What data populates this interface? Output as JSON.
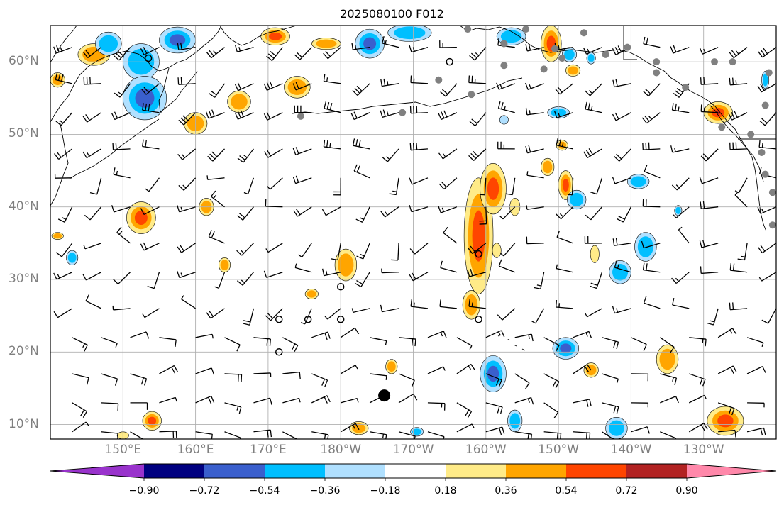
{
  "title": "2025080100 F012",
  "map": {
    "projection": "Plate Carree",
    "lon_range_deg_east": [
      140,
      240
    ],
    "lat_range": [
      8,
      65
    ],
    "lat_labels": [
      {
        "lat": 60,
        "text": "60°N"
      },
      {
        "lat": 50,
        "text": "50°N"
      },
      {
        "lat": 40,
        "text": "40°N"
      },
      {
        "lat": 30,
        "text": "30°N"
      },
      {
        "lat": 20,
        "text": "20°N"
      },
      {
        "lat": 10,
        "text": "10°N"
      }
    ],
    "lon_labels": [
      {
        "lon": 150,
        "text": "150°E"
      },
      {
        "lon": 160,
        "text": "160°E"
      },
      {
        "lon": 170,
        "text": "170°E"
      },
      {
        "lon": 180,
        "text": "180°W"
      },
      {
        "lon": 190,
        "text": "170°W"
      },
      {
        "lon": 200,
        "text": "160°W"
      },
      {
        "lon": 210,
        "text": "150°W"
      },
      {
        "lon": 220,
        "text": "140°W"
      },
      {
        "lon": 230,
        "text": "130°W"
      }
    ],
    "grid_color": "#b0b0b0",
    "coast_color": "#000000"
  },
  "colorbar": {
    "colors": [
      "#9933cc",
      "#000080",
      "#3a5fcd",
      "#00bfff",
      "#b0e0ff",
      "#ffffff",
      "#ffeb88",
      "#ffa500",
      "#ff4500",
      "#b22222",
      "#ff88aa"
    ],
    "labels": [
      "−0.90",
      "−0.72",
      "−0.54",
      "−0.36",
      "−0.18",
      "0.18",
      "0.36",
      "0.54",
      "0.72",
      "0.90"
    ],
    "levels": [
      -0.9,
      -0.72,
      -0.54,
      -0.36,
      -0.18,
      0.18,
      0.36,
      0.54,
      0.72,
      0.9
    ]
  },
  "features": {
    "positive_blobs": [
      {
        "lon": 199.0,
        "lat": 36.0,
        "rlon": 2.0,
        "rlat": 8.0,
        "level": 0.55
      },
      {
        "lon": 201.0,
        "lat": 42.5,
        "rlon": 1.8,
        "rlat": 3.5,
        "level": 0.65
      },
      {
        "lon": 152.5,
        "lat": 38.5,
        "rlon": 2.0,
        "rlat": 2.2,
        "level": 0.6
      },
      {
        "lon": 180.7,
        "lat": 32.0,
        "rlon": 1.5,
        "rlat": 2.2,
        "level": 0.4
      },
      {
        "lon": 204.0,
        "lat": 40.0,
        "rlon": 0.7,
        "rlat": 1.2,
        "level": 0.3
      },
      {
        "lon": 146.0,
        "lat": 61.0,
        "rlon": 2.2,
        "rlat": 1.5,
        "level": 0.45
      },
      {
        "lon": 166.0,
        "lat": 54.5,
        "rlon": 1.6,
        "rlat": 1.5,
        "level": 0.5
      },
      {
        "lon": 174.0,
        "lat": 56.5,
        "rlon": 1.8,
        "rlat": 1.5,
        "level": 0.5
      },
      {
        "lon": 171.0,
        "lat": 63.5,
        "rlon": 2.0,
        "rlat": 1.2,
        "level": 0.55
      },
      {
        "lon": 178.0,
        "lat": 62.5,
        "rlon": 2.0,
        "rlat": 0.8,
        "level": 0.4
      },
      {
        "lon": 209.0,
        "lat": 62.5,
        "rlon": 1.4,
        "rlat": 2.5,
        "level": 0.7
      },
      {
        "lon": 212.0,
        "lat": 58.8,
        "rlon": 1.0,
        "rlat": 0.8,
        "level": 0.4
      },
      {
        "lon": 232.0,
        "lat": 53.0,
        "rlon": 2.0,
        "rlat": 1.5,
        "level": 0.75
      },
      {
        "lon": 160.0,
        "lat": 51.5,
        "rlon": 1.6,
        "rlat": 1.5,
        "level": 0.4
      },
      {
        "lon": 208.5,
        "lat": 45.5,
        "rlon": 0.9,
        "rlat": 1.2,
        "level": 0.45
      },
      {
        "lon": 211.0,
        "lat": 43.0,
        "rlon": 1.0,
        "rlat": 2.0,
        "level": 0.55
      },
      {
        "lon": 154.0,
        "lat": 10.5,
        "rlon": 1.3,
        "rlat": 1.3,
        "level": 0.55
      },
      {
        "lon": 233.0,
        "lat": 10.5,
        "rlon": 2.5,
        "rlat": 2.0,
        "level": 0.6
      },
      {
        "lon": 214.5,
        "lat": 17.5,
        "rlon": 1.0,
        "rlat": 1.0,
        "level": 0.5
      },
      {
        "lon": 182.5,
        "lat": 9.5,
        "rlon": 1.3,
        "rlat": 0.9,
        "level": 0.45
      },
      {
        "lon": 187.0,
        "lat": 18.0,
        "rlon": 0.8,
        "rlat": 1.0,
        "level": 0.5
      },
      {
        "lon": 198.0,
        "lat": 26.5,
        "rlon": 1.2,
        "rlat": 2.0,
        "level": 0.45
      },
      {
        "lon": 210.5,
        "lat": 48.5,
        "rlon": 0.8,
        "rlat": 0.7,
        "level": 0.4
      },
      {
        "lon": 201.5,
        "lat": 34.0,
        "rlon": 0.6,
        "rlat": 1.0,
        "level": 0.35
      },
      {
        "lon": 150.0,
        "lat": 8.5,
        "rlon": 0.8,
        "rlat": 0.5,
        "level": 0.35
      },
      {
        "lon": 164.0,
        "lat": 32.0,
        "rlon": 0.8,
        "rlat": 1.0,
        "level": 0.4
      },
      {
        "lon": 225.0,
        "lat": 19.0,
        "rlon": 1.5,
        "rlat": 2.0,
        "level": 0.45
      },
      {
        "lon": 161.5,
        "lat": 40.0,
        "rlon": 1.0,
        "rlat": 1.2,
        "level": 0.45
      },
      {
        "lon": 215.0,
        "lat": 33.5,
        "rlon": 0.6,
        "rlat": 1.2,
        "level": 0.35
      },
      {
        "lon": 176.0,
        "lat": 28.0,
        "rlon": 0.9,
        "rlat": 0.7,
        "level": 0.4
      },
      {
        "lon": 141.0,
        "lat": 57.5,
        "rlon": 1.0,
        "rlat": 1.0,
        "level": 0.4
      },
      {
        "lon": 141.0,
        "lat": 36.0,
        "rlon": 0.8,
        "rlat": 0.5,
        "level": 0.4
      }
    ],
    "negative_blobs": [
      {
        "lon": 152.5,
        "lat": 60.0,
        "rlon": 2.5,
        "rlat": 2.5,
        "level": -0.5
      },
      {
        "lon": 153.0,
        "lat": 55.0,
        "rlon": 3.0,
        "rlat": 3.0,
        "level": -0.6
      },
      {
        "lon": 148.0,
        "lat": 62.5,
        "rlon": 1.8,
        "rlat": 1.6,
        "level": -0.4
      },
      {
        "lon": 157.5,
        "lat": 63.0,
        "rlon": 2.5,
        "rlat": 1.8,
        "level": -0.55
      },
      {
        "lon": 184.0,
        "lat": 62.5,
        "rlon": 2.0,
        "rlat": 2.0,
        "level": -0.55
      },
      {
        "lon": 189.5,
        "lat": 64.0,
        "rlon": 3.0,
        "rlat": 1.2,
        "level": -0.45
      },
      {
        "lon": 203.5,
        "lat": 63.5,
        "rlon": 2.0,
        "rlat": 1.2,
        "level": -0.4
      },
      {
        "lon": 211.5,
        "lat": 61.0,
        "rlon": 1.0,
        "rlat": 1.0,
        "level": -0.4
      },
      {
        "lon": 201.0,
        "lat": 17.0,
        "rlon": 1.8,
        "rlat": 2.5,
        "level": -0.55
      },
      {
        "lon": 211.0,
        "lat": 20.5,
        "rlon": 1.8,
        "rlat": 1.5,
        "level": -0.58
      },
      {
        "lon": 204.0,
        "lat": 10.5,
        "rlon": 1.0,
        "rlat": 1.5,
        "level": -0.4
      },
      {
        "lon": 218.0,
        "lat": 9.5,
        "rlon": 1.5,
        "rlat": 1.5,
        "level": -0.4
      },
      {
        "lon": 218.5,
        "lat": 31.0,
        "rlon": 1.5,
        "rlat": 1.6,
        "level": -0.4
      },
      {
        "lon": 222.0,
        "lat": 34.5,
        "rlon": 1.5,
        "rlat": 2.0,
        "level": -0.45
      },
      {
        "lon": 212.5,
        "lat": 41.0,
        "rlon": 1.3,
        "rlat": 1.3,
        "level": -0.4
      },
      {
        "lon": 221.0,
        "lat": 43.5,
        "rlon": 1.5,
        "rlat": 1.0,
        "level": -0.4
      },
      {
        "lon": 143.0,
        "lat": 33.0,
        "rlon": 0.8,
        "rlat": 1.0,
        "level": -0.4
      },
      {
        "lon": 210.0,
        "lat": 53.0,
        "rlon": 1.5,
        "rlat": 0.8,
        "level": -0.4
      },
      {
        "lon": 190.5,
        "lat": 9.0,
        "rlon": 0.9,
        "rlat": 0.6,
        "level": -0.4
      },
      {
        "lon": 226.5,
        "lat": 39.5,
        "rlon": 0.5,
        "rlat": 0.7,
        "level": -0.4
      },
      {
        "lon": 238.5,
        "lat": 57.5,
        "rlon": 0.5,
        "rlat": 1.2,
        "level": -0.4
      },
      {
        "lon": 202.5,
        "lat": 52.0,
        "rlon": 0.6,
        "rlat": 0.6,
        "level": -0.35
      },
      {
        "lon": 214.5,
        "lat": 60.5,
        "rlon": 0.6,
        "rlat": 0.8,
        "level": -0.4
      }
    ],
    "grey_dots": [
      [
        197.5,
        64.5
      ],
      [
        205.5,
        64.5
      ],
      [
        202.5,
        62.5
      ],
      [
        209.5,
        61.8
      ],
      [
        210.5,
        60.5
      ],
      [
        223.5,
        60.0
      ],
      [
        223.5,
        58.5
      ],
      [
        231.5,
        60.0
      ],
      [
        234.0,
        60.0
      ],
      [
        239.0,
        58.5
      ],
      [
        238.5,
        54.0
      ],
      [
        227.5,
        56.5
      ],
      [
        216.5,
        61.0
      ],
      [
        219.5,
        62.0
      ],
      [
        193.5,
        57.5
      ],
      [
        202.5,
        59.5
      ],
      [
        198.0,
        55.5
      ],
      [
        188.5,
        53.0
      ],
      [
        174.5,
        52.5
      ],
      [
        208.0,
        59.0
      ],
      [
        213.5,
        64.0
      ],
      [
        232.5,
        51.0
      ],
      [
        236.5,
        50.0
      ],
      [
        238.0,
        47.5
      ],
      [
        238.5,
        44.5
      ],
      [
        239.5,
        42.0
      ],
      [
        239.5,
        37.5
      ]
    ],
    "open_circles": [
      [
        171.5,
        24.5
      ],
      [
        175.5,
        24.5
      ],
      [
        180.0,
        24.5
      ],
      [
        180.0,
        29.0
      ],
      [
        171.5,
        20.0
      ],
      [
        199.0,
        24.5
      ],
      [
        199.0,
        33.5
      ],
      [
        195.0,
        60.0
      ],
      [
        153.5,
        60.5
      ]
    ],
    "filled_circle": [
      186.0,
      14.0
    ],
    "barbs": {
      "lons": [
        143,
        147,
        151,
        155,
        160,
        164,
        168,
        172,
        176,
        180,
        184,
        188,
        192,
        196,
        200,
        204,
        208,
        212,
        216,
        220,
        224,
        228,
        232,
        236,
        240
      ],
      "lats": [
        62,
        57,
        53,
        48,
        44,
        40,
        35,
        31,
        26,
        22,
        17,
        13,
        9
      ]
    }
  }
}
